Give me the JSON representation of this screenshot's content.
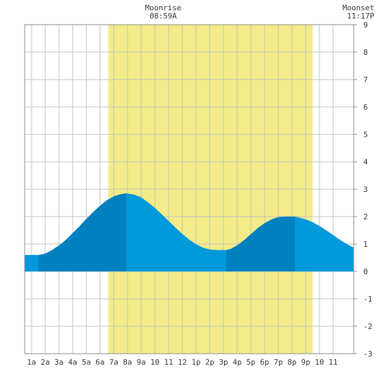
{
  "annotations": {
    "moonrise_label": "Moonrise",
    "moonrise_time": "08:59A",
    "moonset_label": "Moonset",
    "moonset_time": "11:17P"
  },
  "chart_data": {
    "type": "area",
    "title": "",
    "xlabel": "",
    "ylabel": "",
    "xlim": [
      -0.5,
      23.5
    ],
    "ylim": [
      -3,
      9
    ],
    "x_tick_labels": [
      "1a",
      "2a",
      "3a",
      "4a",
      "5a",
      "6a",
      "7a",
      "8a",
      "9a",
      "10",
      "11",
      "12",
      "1p",
      "2p",
      "3p",
      "4p",
      "5p",
      "6p",
      "7p",
      "8p",
      "9p",
      "10",
      "11"
    ],
    "y_ticks": [
      -3,
      -2,
      -1,
      0,
      1,
      2,
      3,
      4,
      5,
      6,
      7,
      8,
      9
    ],
    "grid": true,
    "daylight_span_hours": [
      5.6,
      20.5
    ],
    "colors": {
      "daylight": "#f3ec88",
      "rising_tide": "#0080bf",
      "falling_tide": "#0099db",
      "grid": "#c0c0c0"
    },
    "tide_extremes": [
      {
        "time_hours": 0.5,
        "height": 0.6,
        "type": "low"
      },
      {
        "time_hours": 6.9,
        "height": 2.85,
        "type": "high"
      },
      {
        "time_hours": 14.2,
        "height": 0.78,
        "type": "low"
      },
      {
        "time_hours": 19.2,
        "height": 2.0,
        "type": "high"
      }
    ],
    "series": [
      {
        "values_x": [
          -0.5,
          0.0,
          0.5,
          1.0,
          1.5,
          2.0,
          2.5,
          3.0,
          3.5,
          4.0,
          4.5,
          5.0,
          5.5,
          6.0,
          6.5,
          6.9,
          7.5,
          8.0,
          8.5,
          9.0,
          9.5,
          10.0,
          10.5,
          11.0,
          11.5,
          12.0,
          12.5,
          13.0,
          13.5,
          14.0,
          14.2,
          14.5,
          15.0,
          15.5,
          16.0,
          16.5,
          17.0,
          17.5,
          18.0,
          18.5,
          19.2,
          19.5,
          20.0,
          20.5,
          21.0,
          21.5,
          22.0,
          22.5,
          23.0,
          23.5
        ],
        "values_y": [
          0.6,
          0.6,
          0.6,
          0.65,
          0.78,
          0.95,
          1.15,
          1.4,
          1.65,
          1.92,
          2.17,
          2.4,
          2.6,
          2.74,
          2.82,
          2.85,
          2.8,
          2.7,
          2.52,
          2.32,
          2.08,
          1.84,
          1.6,
          1.37,
          1.16,
          0.99,
          0.87,
          0.8,
          0.78,
          0.78,
          0.78,
          0.82,
          0.95,
          1.14,
          1.36,
          1.58,
          1.76,
          1.9,
          1.98,
          2.0,
          2.0,
          1.97,
          1.9,
          1.8,
          1.66,
          1.5,
          1.33,
          1.15,
          1.0,
          0.87
        ]
      }
    ]
  }
}
